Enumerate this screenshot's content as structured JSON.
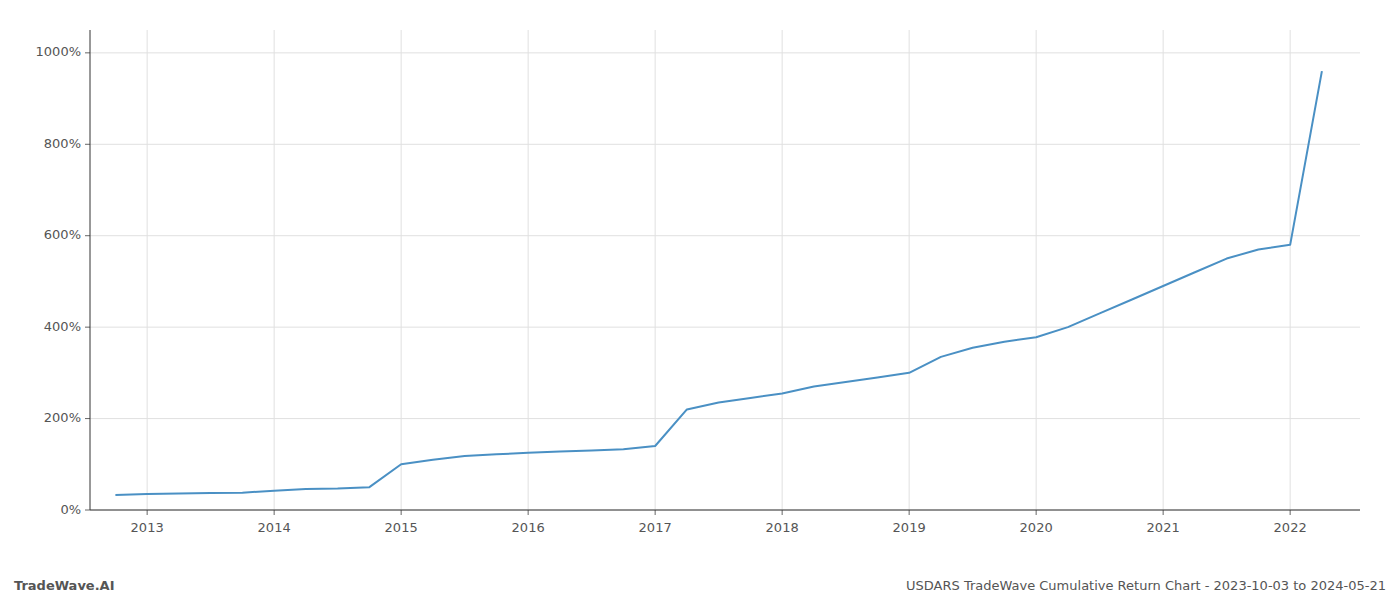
{
  "chart_data": {
    "type": "line",
    "x": [
      2012.75,
      2013.0,
      2013.25,
      2013.5,
      2013.75,
      2014.0,
      2014.25,
      2014.5,
      2014.75,
      2015.0,
      2015.25,
      2015.5,
      2015.75,
      2016.0,
      2016.25,
      2016.5,
      2016.75,
      2017.0,
      2017.25,
      2017.5,
      2017.75,
      2018.0,
      2018.25,
      2018.5,
      2018.75,
      2019.0,
      2019.25,
      2019.5,
      2019.75,
      2020.0,
      2020.25,
      2020.5,
      2020.75,
      2021.0,
      2021.25,
      2021.5,
      2021.75,
      2022.0,
      2022.25
    ],
    "values": [
      33,
      35,
      36,
      37,
      38,
      42,
      46,
      47,
      50,
      100,
      110,
      118,
      122,
      125,
      128,
      130,
      133,
      140,
      220,
      235,
      245,
      255,
      270,
      280,
      290,
      300,
      335,
      355,
      368,
      378,
      400,
      430,
      460,
      490,
      520,
      550,
      570,
      580,
      960
    ],
    "color": "#4a90c4",
    "xlim": [
      2012.55,
      2022.55
    ],
    "xticks": [
      2013,
      2014,
      2015,
      2016,
      2017,
      2018,
      2019,
      2020,
      2021,
      2022
    ],
    "ylim": [
      0,
      1050
    ],
    "yticks": [
      {
        "value": 0,
        "label": "0%"
      },
      {
        "value": 200,
        "label": "200%"
      },
      {
        "value": 400,
        "label": "400%"
      },
      {
        "value": 600,
        "label": "600%"
      },
      {
        "value": 800,
        "label": "800%"
      },
      {
        "value": 1000,
        "label": "1000%"
      }
    ],
    "grid": true,
    "annotations": [
      {
        "text": "TradeWave.AI"
      },
      {
        "text": "USDARS TradeWave Cumulative Return Chart - 2023-10-03 to 2024-05-21"
      }
    ]
  }
}
